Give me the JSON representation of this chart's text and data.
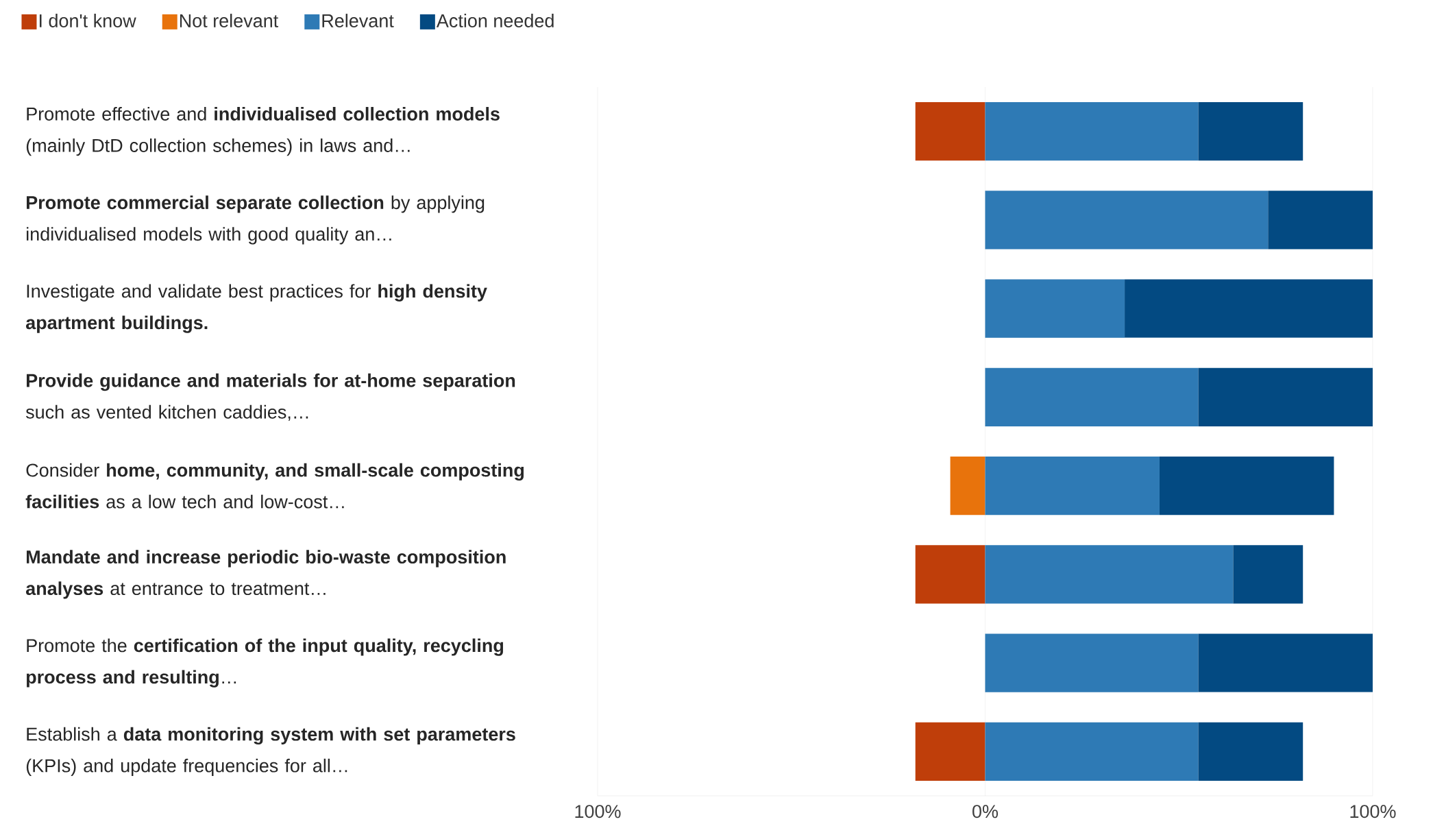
{
  "chart_data": {
    "type": "bar",
    "orientation": "horizontal",
    "stacked": true,
    "categories": [
      "Promote effective and **individualised collection models** (mainly DtD collection schemes) in laws and…",
      "**Promote commercial separate collection** by applying individualised models with good quality an…",
      "Investigate and validate best practices for **high density apartment buildings.**",
      "**Provide guidance and materials for at-home separation** such as vented kitchen caddies,…",
      "Consider **home, community, and small-scale composting facilities** as a low tech and low-cost…",
      "**Mandate and increase periodic bio-waste composition analyses** at entrance to treatment…",
      "Promote the **certification of the input quality, recycling process and resulting**…",
      "Establish a **data monitoring system with set parameters** (KPIs) and update frequencies for all…"
    ],
    "series": [
      {
        "name": "I don't know",
        "color": "#bf3e0a",
        "values": [
          -18,
          null,
          null,
          null,
          null,
          -18,
          null,
          -18
        ]
      },
      {
        "name": "Not relevant",
        "color": "#e8730c",
        "values": [
          null,
          null,
          null,
          null,
          -9,
          null,
          null,
          null
        ]
      },
      {
        "name": "Relevant",
        "color": "#2e7ab5",
        "values": [
          55,
          73,
          36,
          55,
          45,
          64,
          55,
          55
        ]
      },
      {
        "name": "Action needed",
        "color": "#034a82",
        "values": [
          27,
          27,
          64,
          45,
          45,
          18,
          45,
          27
        ]
      }
    ],
    "xlim": [
      -100,
      100
    ],
    "xticks": [
      {
        "value": -100,
        "label": "100%"
      },
      {
        "value": 0,
        "label": "0%"
      },
      {
        "value": 100,
        "label": "100%"
      }
    ],
    "grid": "x",
    "legend": "top left"
  }
}
